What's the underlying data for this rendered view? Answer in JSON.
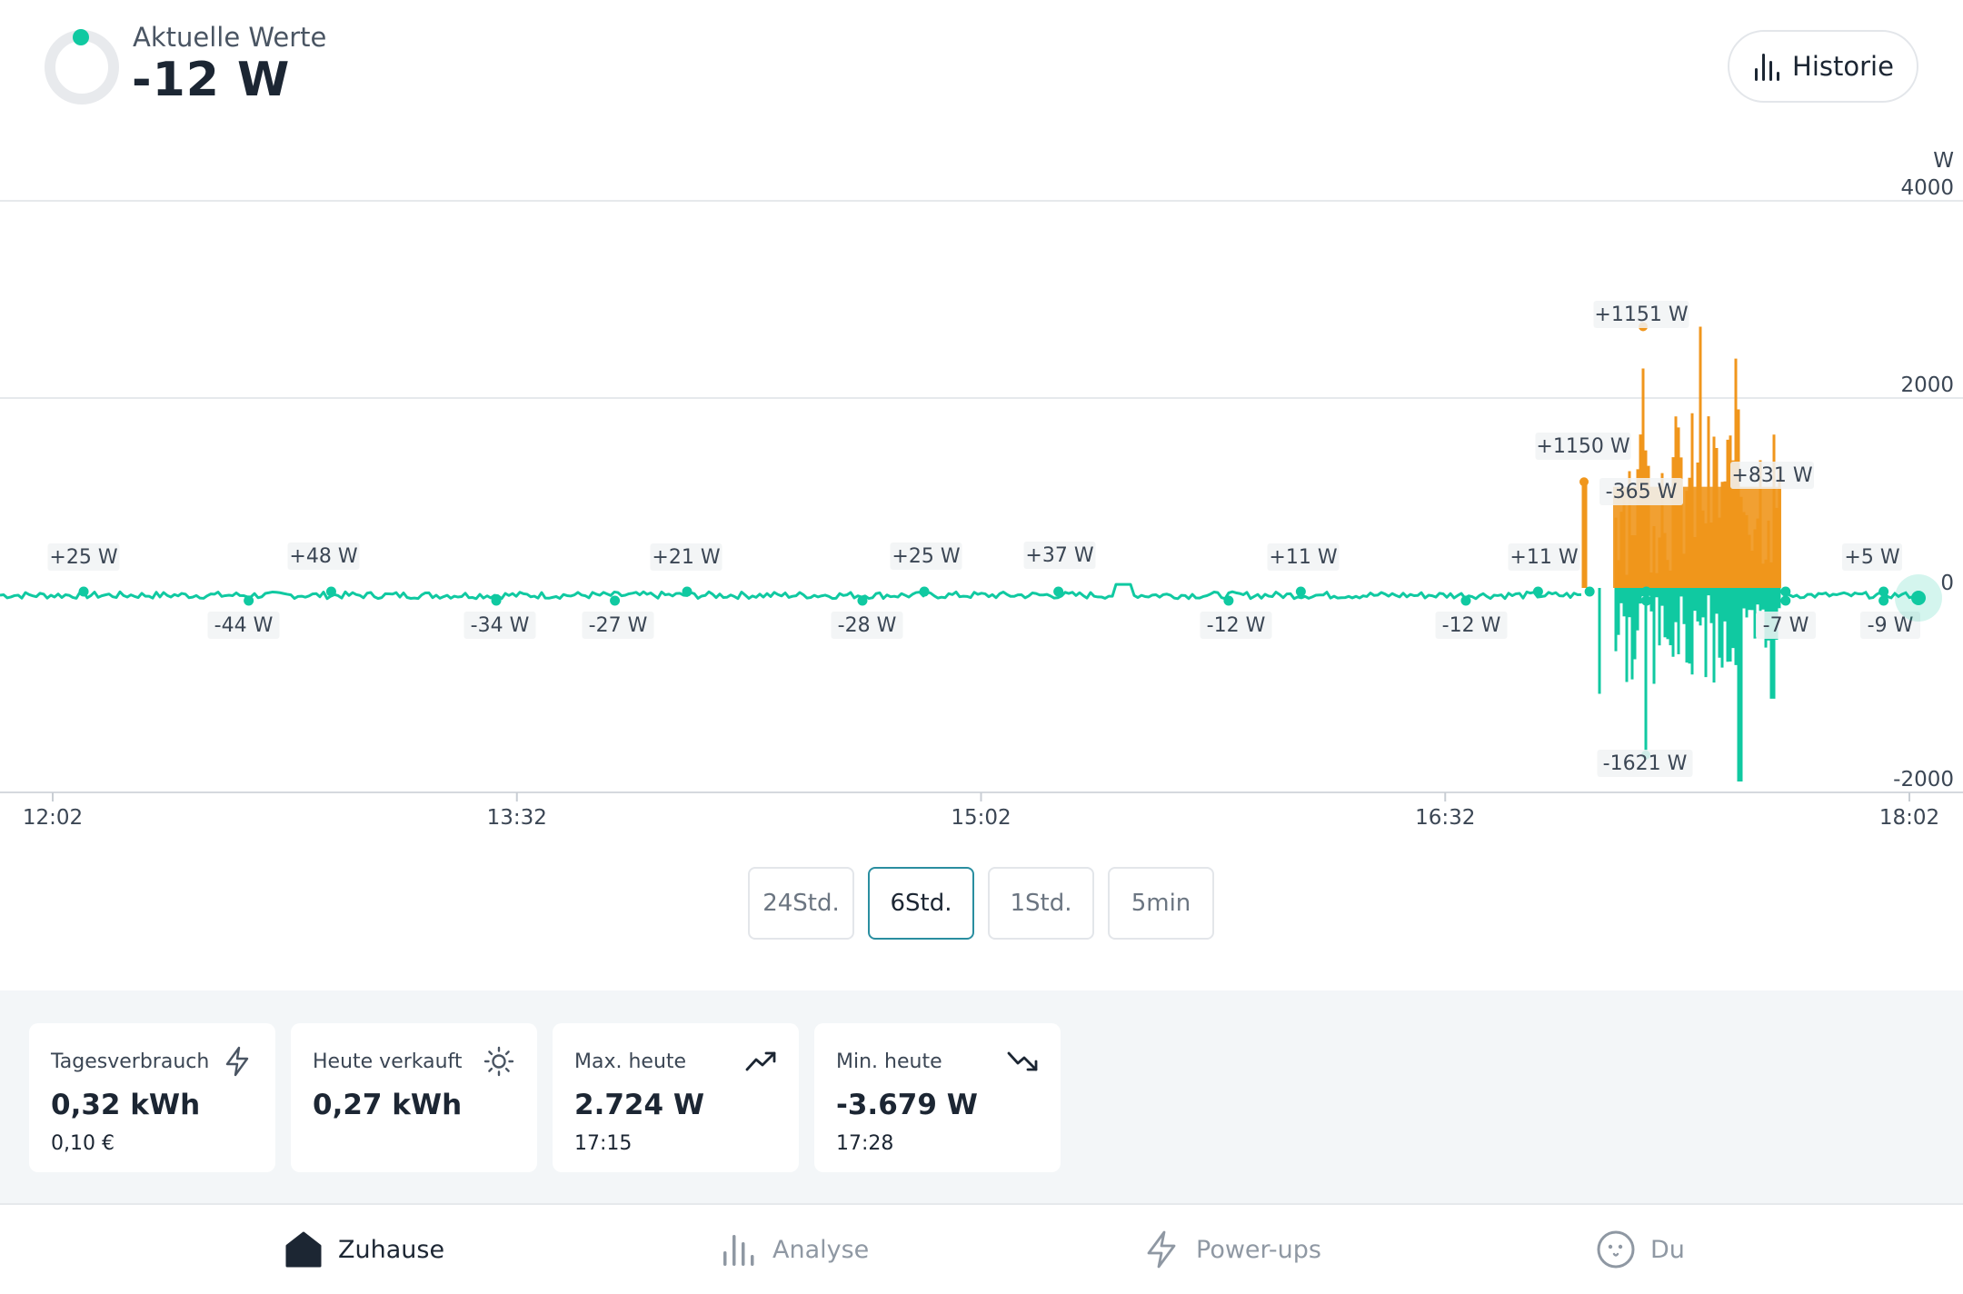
{
  "header": {
    "label": "Aktuelle Werte",
    "value": "-12 W",
    "historie_label": "Historie"
  },
  "chart_data": {
    "type": "line",
    "unit_label": "W",
    "x_ticks": [
      "12:02",
      "13:32",
      "15:02",
      "16:32",
      "18:02"
    ],
    "y_ticks": [
      4000,
      2000,
      0,
      -2000
    ],
    "ylim": [
      -2000,
      4000
    ],
    "colors": {
      "positive": "#f0961c",
      "negative": "#10c9a1"
    },
    "annotations": [
      {
        "text": "+25 W",
        "time": "12:08"
      },
      {
        "text": "-44 W",
        "time": "12:40"
      },
      {
        "text": "+48 W",
        "time": "12:56"
      },
      {
        "text": "-34 W",
        "time": "13:28"
      },
      {
        "text": "-27 W",
        "time": "13:51"
      },
      {
        "text": "+21 W",
        "time": "14:05"
      },
      {
        "text": "-28 W",
        "time": "14:39"
      },
      {
        "text": "+25 W",
        "time": "14:51"
      },
      {
        "text": "+37 W",
        "time": "15:17"
      },
      {
        "text": "-12 W",
        "time": "15:50"
      },
      {
        "text": "+11 W",
        "time": "16:04"
      },
      {
        "text": "-12 W",
        "time": "16:36"
      },
      {
        "text": "+11 W",
        "time": "16:50"
      },
      {
        "text": "+1150 W",
        "time": "17:00"
      },
      {
        "text": "+1151 W",
        "time": "17:11"
      },
      {
        "text": "-365 W",
        "time": "17:11"
      },
      {
        "text": "-1621 W",
        "time": "17:11"
      },
      {
        "text": "+831 W",
        "time": "17:38"
      },
      {
        "text": "-7 W",
        "time": "17:38"
      },
      {
        "text": "+5 W",
        "time": "17:57"
      },
      {
        "text": "-9 W",
        "time": "17:57"
      }
    ]
  },
  "ranges": {
    "items": [
      "24Std.",
      "6Std.",
      "1Std.",
      "5min"
    ],
    "active": "6Std."
  },
  "stats": [
    {
      "title": "Tagesverbrauch",
      "value": "0,32 kWh",
      "sub": "0,10 €",
      "icon": "lightning-icon"
    },
    {
      "title": "Heute verkauft",
      "value": "0,27 kWh",
      "sub": "",
      "icon": "sun-icon"
    },
    {
      "title": "Max. heute",
      "value": "2.724 W",
      "sub": "17:15",
      "icon": "trend-up-icon"
    },
    {
      "title": "Min. heute",
      "value": "-3.679 W",
      "sub": "17:28",
      "icon": "trend-down-icon"
    }
  ],
  "nav": [
    {
      "label": "Zuhause",
      "icon": "home-icon",
      "active": true
    },
    {
      "label": "Analyse",
      "icon": "bar-chart-icon",
      "active": false
    },
    {
      "label": "Power-ups",
      "icon": "lightning-icon",
      "active": false
    },
    {
      "label": "Du",
      "icon": "face-icon",
      "active": false
    }
  ]
}
